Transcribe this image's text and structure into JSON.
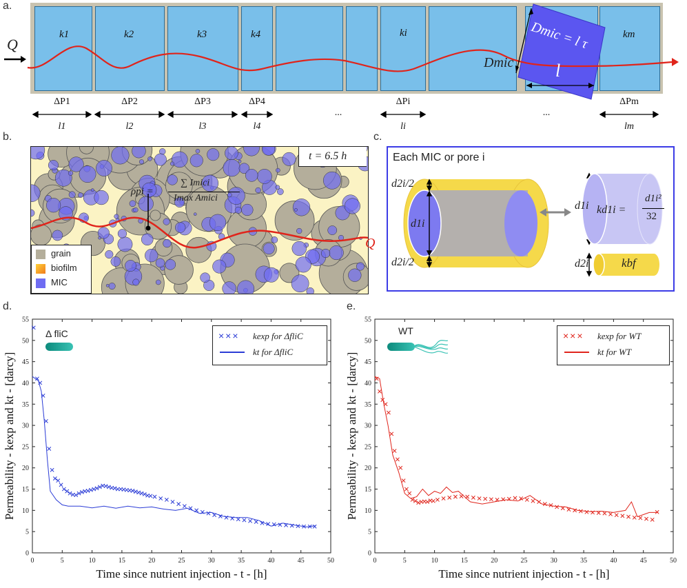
{
  "panels": {
    "a": "a.",
    "b": "b.",
    "c": "c.",
    "d": "d.",
    "e": "e."
  },
  "panel_a": {
    "flow_label": "Q",
    "segments": [
      {
        "k": "k1",
        "dp": "ΔP1",
        "l": "l1"
      },
      {
        "k": "k2",
        "dp": "ΔP2",
        "l": "l2"
      },
      {
        "k": "k3",
        "dp": "ΔP3",
        "l": "l3"
      },
      {
        "k": "k4",
        "dp": "ΔP4",
        "l": "l4"
      },
      {
        "k": "ki",
        "dp": "ΔPi",
        "l": "li"
      },
      {
        "k": "km",
        "dp": "ΔPm",
        "l": "lm"
      }
    ],
    "ellipsis": "...",
    "mic_diameter_label": "Dmic",
    "mic_equation": "Dmic = l τ",
    "mic_length_label": "l"
  },
  "panel_b": {
    "time_label": "t = 6.5 h",
    "equation_lhs": "ρpi =",
    "equation_num": "∑ Imici",
    "equation_den": "Imax Amici",
    "flow_label": "Q",
    "legend": [
      {
        "label": "grain",
        "color": "#b4ae9b"
      },
      {
        "label": "biofilm",
        "color": "#f5a623"
      },
      {
        "label": "MIC",
        "color": "#6f6cf2"
      }
    ]
  },
  "panel_c": {
    "title": "Each MIC or pore i",
    "half_top": "d2i/2",
    "inner": "d1i",
    "half_bottom": "d2i/2",
    "k_formula_lhs": "kd1i =",
    "k_formula_num": "d1i²",
    "k_formula_den": "32",
    "d1_label": "d1i",
    "d2_label": "d2i",
    "kbf_label": "kbf"
  },
  "colors": {
    "blue_series": "#2a3bd6",
    "red_series": "#e0241b",
    "pipe_blue": "#79bfea",
    "mic": "#5b56f0",
    "biofilm": "#f5d94a"
  },
  "chart_data": [
    {
      "type": "line",
      "title": "",
      "strain_label": "Δ fliC",
      "xlabel": "Time since nutrient injection - t - [h]",
      "ylabel": "Permeability - kexp and kt - [darcy]",
      "xlim": [
        0,
        50
      ],
      "ylim": [
        0,
        55
      ],
      "xticks": [
        "0",
        "5",
        "10",
        "15",
        "20",
        "25",
        "30",
        "35",
        "40",
        "45",
        "50"
      ],
      "yticks": [
        "0",
        "5",
        "10",
        "15",
        "20",
        "25",
        "30",
        "35",
        "40",
        "45",
        "50",
        "55"
      ],
      "legend_position": "top-right",
      "series": [
        {
          "name": "kexp for ΔfliC",
          "legend": "kexp for ΔfliC",
          "marker": "x",
          "x": [
            0.2,
            0.8,
            1.3,
            1.8,
            2.3,
            2.8,
            3.3,
            3.8,
            4.3,
            4.8,
            5.3,
            5.8,
            6.3,
            6.8,
            7.3,
            7.8,
            8.3,
            8.8,
            9.3,
            9.8,
            10.3,
            10.8,
            11.3,
            11.8,
            12.3,
            12.8,
            13.3,
            13.8,
            14.3,
            14.8,
            15.3,
            15.8,
            16.3,
            16.8,
            17.3,
            17.8,
            18.3,
            18.8,
            19.3,
            19.8,
            20.5,
            21.5,
            22.5,
            23.5,
            24.5,
            25.5,
            26.5,
            27.5,
            28.5,
            29.5,
            30.5,
            31.5,
            32.5,
            33.5,
            34.5,
            35.5,
            36.5,
            37.5,
            38.5,
            39.5,
            40.5,
            41.5,
            42.5,
            43.5,
            44.5,
            45.5,
            46.5,
            47.3
          ],
          "values": [
            53,
            41,
            40,
            37,
            31,
            24.5,
            19.5,
            17.5,
            17,
            16,
            15,
            14.5,
            14,
            13.7,
            13.6,
            14,
            14.3,
            14.5,
            14.6,
            14.8,
            15,
            15.2,
            15.5,
            15.8,
            15.7,
            15.5,
            15.3,
            15.2,
            15,
            15,
            14.9,
            14.8,
            14.7,
            14.6,
            14.4,
            14.2,
            14,
            13.8,
            13.5,
            13.4,
            13.2,
            12.8,
            12.5,
            12,
            11.5,
            11,
            10.5,
            10,
            9.6,
            9.3,
            8.9,
            8.6,
            8.3,
            8.1,
            7.9,
            7.7,
            7.5,
            7.3,
            7,
            6.8,
            6.7,
            6.6,
            6.5,
            6.4,
            6.3,
            6.2,
            6.2,
            6.2
          ]
        },
        {
          "name": "kt for ΔfliC",
          "legend": "kt for ΔfliC",
          "marker": "line",
          "x": [
            0,
            1,
            1.5,
            2,
            2.5,
            3,
            4,
            5,
            6,
            8,
            10,
            12,
            14,
            16,
            18,
            20,
            22,
            24,
            26,
            28,
            30,
            32,
            34,
            36,
            38,
            40,
            42,
            44,
            46,
            47.5
          ],
          "values": [
            41.5,
            40.5,
            38,
            31,
            22,
            14.5,
            12.5,
            11.3,
            11,
            11,
            10.6,
            11,
            10.5,
            11,
            10.6,
            10.8,
            10.3,
            10,
            10.5,
            9.3,
            9.5,
            8.6,
            8.3,
            8.3,
            7.6,
            6.3,
            7,
            6.5,
            6.1,
            6.4
          ]
        }
      ]
    },
    {
      "type": "line",
      "title": "",
      "strain_label": "WT",
      "xlabel": "Time since nutrient injection - t - [h]",
      "ylabel": "Permeability - kexp and kt - [darcy]",
      "xlim": [
        0,
        50
      ],
      "ylim": [
        0,
        55
      ],
      "xticks": [
        "0",
        "5",
        "10",
        "15",
        "20",
        "25",
        "30",
        "35",
        "40",
        "45",
        "50"
      ],
      "yticks": [
        "0",
        "5",
        "10",
        "15",
        "20",
        "25",
        "30",
        "35",
        "40",
        "45",
        "50",
        "55"
      ],
      "legend_position": "top-right",
      "series": [
        {
          "name": "kexp for WT",
          "legend": "kexp for WT",
          "marker": "x",
          "x": [
            0.3,
            0.8,
            1.3,
            1.8,
            2.3,
            2.8,
            3.3,
            3.8,
            4.3,
            4.8,
            5.3,
            5.8,
            6.3,
            6.8,
            7.3,
            7.8,
            8.3,
            8.8,
            9.3,
            9.8,
            10.5,
            11.5,
            12.5,
            13.5,
            14.5,
            15.5,
            16.5,
            17.5,
            18.5,
            19.5,
            20.5,
            21.5,
            22.5,
            23.5,
            24.5,
            25.5,
            26.5,
            27.5,
            28.5,
            29.5,
            30.5,
            31.5,
            32.5,
            33.5,
            34.5,
            35.5,
            36.5,
            37.5,
            38.5,
            39.5,
            40.5,
            41.5,
            42.5,
            43.5,
            44.5,
            45.5,
            46.5,
            47.3
          ],
          "values": [
            41,
            38,
            36,
            35,
            33,
            28,
            24,
            22,
            20,
            17,
            15,
            14,
            12.5,
            12.2,
            11.8,
            12,
            12.1,
            12,
            12.3,
            12.2,
            12.5,
            12.8,
            13,
            13.2,
            13.3,
            13.2,
            13,
            12.8,
            12.7,
            12.6,
            12.5,
            12.6,
            12.7,
            12.9,
            12.8,
            12.5,
            12.2,
            12,
            11.5,
            11.2,
            10.8,
            10.5,
            10.2,
            10,
            9.8,
            9.6,
            9.5,
            9.4,
            9.3,
            9.1,
            8.9,
            8.7,
            8.5,
            8.3,
            8.2,
            8,
            7.8,
            9.6
          ]
        },
        {
          "name": "kt for WT",
          "legend": "kt for WT",
          "marker": "line",
          "x": [
            0,
            0.8,
            1.5,
            2.2,
            3,
            4,
            5,
            6,
            7,
            8,
            9,
            10,
            11,
            12,
            13,
            14,
            16,
            18,
            20,
            22,
            24,
            26,
            28,
            30,
            32,
            34,
            36,
            38,
            40,
            42,
            43,
            44,
            45,
            46,
            47.5
          ],
          "values": [
            41.5,
            41,
            35,
            30,
            23,
            19,
            14,
            12.8,
            13.2,
            15,
            13.5,
            14.5,
            14,
            15.5,
            14.2,
            14.5,
            12,
            11.5,
            12,
            12.5,
            12.2,
            13.5,
            11.5,
            11,
            10.8,
            10,
            9.7,
            9.8,
            9.5,
            10,
            12,
            8.5,
            9,
            9.5,
            9.5
          ]
        }
      ]
    }
  ]
}
